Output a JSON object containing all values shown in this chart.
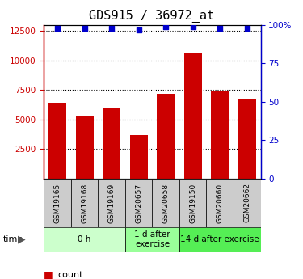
{
  "title": "GDS915 / 36972_at",
  "samples": [
    "GSM19165",
    "GSM19168",
    "GSM19169",
    "GSM20657",
    "GSM20658",
    "GSM19150",
    "GSM20660",
    "GSM20662"
  ],
  "counts": [
    6400,
    5350,
    5950,
    3700,
    7200,
    10600,
    7450,
    6800
  ],
  "percentiles": [
    98,
    98,
    98,
    97,
    99,
    99,
    98,
    98
  ],
  "groups": [
    {
      "label": "0 h",
      "start": 0,
      "end": 3,
      "color": "#ccffcc"
    },
    {
      "label": "1 d after\nexercise",
      "start": 3,
      "end": 5,
      "color": "#99ff99"
    },
    {
      "label": "14 d after exercise",
      "start": 5,
      "end": 8,
      "color": "#55ee55"
    }
  ],
  "ylim_left": [
    0,
    13000
  ],
  "ylim_right": [
    0,
    100
  ],
  "yticks_left": [
    2500,
    5000,
    7500,
    10000,
    12500
  ],
  "yticks_right": [
    0,
    25,
    50,
    75,
    100
  ],
  "bar_color": "#cc0000",
  "dot_color": "#0000cc",
  "grid_color": "#000000",
  "title_fontsize": 11,
  "tick_fontsize": 7.5,
  "sample_fontsize": 6.5,
  "group_fontsize": 7.5,
  "legend_fontsize": 8
}
